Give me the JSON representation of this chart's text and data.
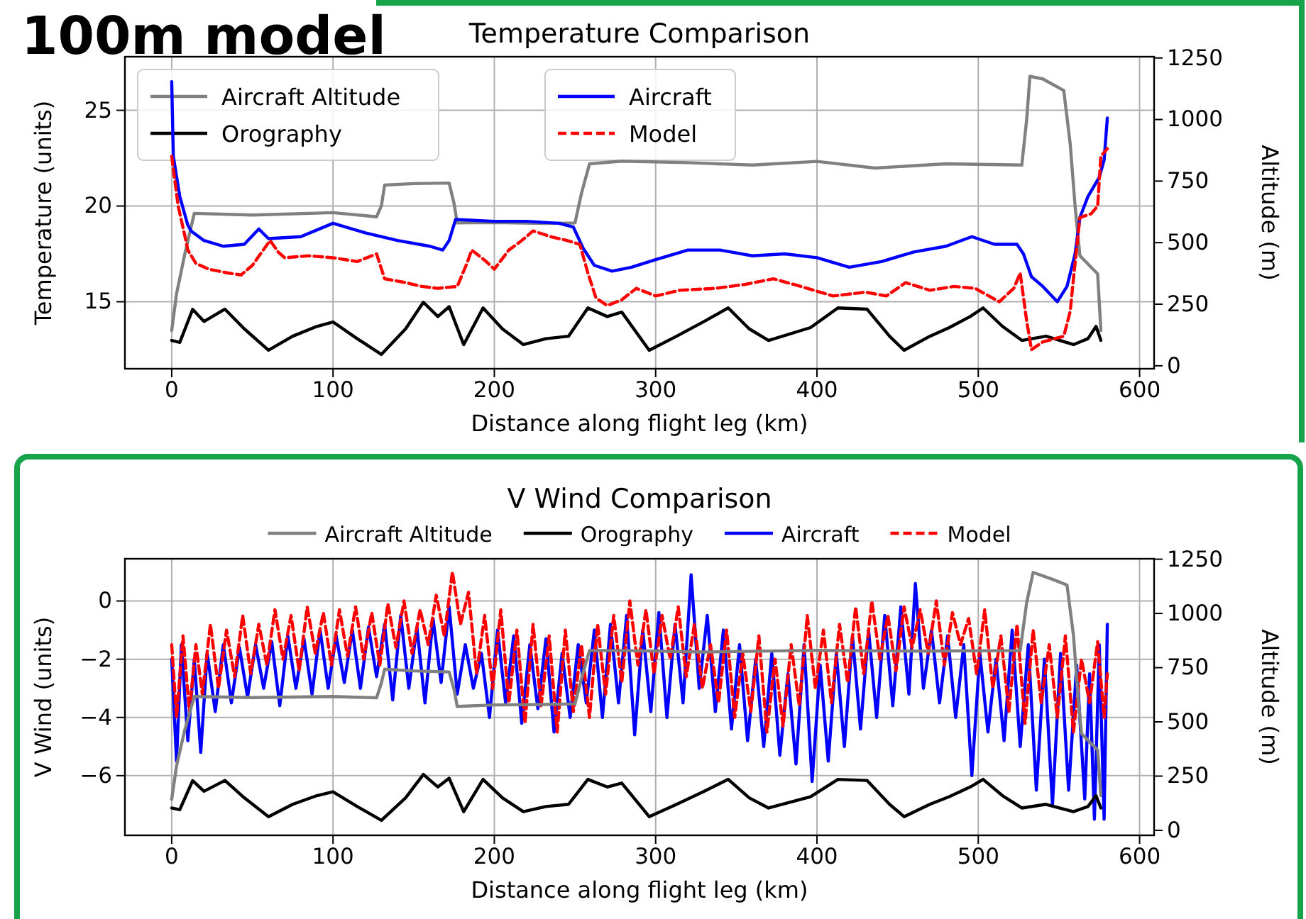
{
  "chart_data": [
    {
      "type": "line",
      "title": "Temperature Comparison",
      "xlabel": "Distance along flight leg (km)",
      "ylabel": "Temperature (units)",
      "y2label": "Altitude (m)",
      "annotations": [
        "100m model"
      ],
      "xlim": [
        -29,
        609
      ],
      "xticks": [
        0,
        100,
        200,
        300,
        400,
        500,
        600
      ],
      "ylim": [
        11.5,
        27.8
      ],
      "yticks": [
        15,
        20,
        25
      ],
      "y2lim": [
        -12,
        1255
      ],
      "y2ticks": [
        0,
        250,
        500,
        750,
        1000,
        1250
      ],
      "grid": true,
      "legend": "top",
      "marker": "none",
      "series": [
        {
          "name": "Aircraft Altitude",
          "color": "#808080",
          "axis": "y2",
          "line_style": "solid",
          "x": [
            0,
            3,
            8,
            14,
            50,
            100,
            127,
            130,
            132,
            150,
            172,
            175,
            177,
            200,
            230,
            250,
            254,
            259,
            279,
            320,
            360,
            400,
            436,
            480,
            527,
            530,
            532,
            540,
            553,
            557,
            560,
            563,
            570,
            574,
            576
          ],
          "values": [
            143,
            292,
            450,
            619,
            612,
            622,
            605,
            650,
            734,
            740,
            742,
            660,
            580,
            582,
            578,
            580,
            700,
            820,
            831,
            825,
            815,
            830,
            803,
            820,
            815,
            1000,
            1175,
            1165,
            1118,
            900,
            650,
            447,
            400,
            373,
            143
          ]
        },
        {
          "name": "Orography",
          "color": "#000000",
          "axis": "y2",
          "line_style": "solid",
          "x": [
            0,
            5,
            13,
            20,
            33,
            45,
            60,
            75,
            90,
            100,
            115,
            130,
            145,
            156,
            165,
            172,
            181,
            193,
            205,
            218,
            232,
            246,
            258,
            270,
            279,
            296,
            313,
            330,
            345,
            358,
            370,
            396,
            413,
            431,
            445,
            454,
            470,
            482,
            495,
            503,
            515,
            527,
            542,
            559,
            568,
            573,
            576
          ],
          "values": [
            103,
            95,
            229,
            180,
            230,
            150,
            63,
            120,
            160,
            178,
            110,
            46,
            150,
            258,
            200,
            240,
            86,
            235,
            150,
            86,
            110,
            120,
            235,
            200,
            218,
            63,
            120,
            180,
            235,
            150,
            103,
            155,
            235,
            230,
            120,
            63,
            120,
            155,
            200,
            235,
            160,
            103,
            120,
            86,
            110,
            160,
            103
          ]
        },
        {
          "name": "Aircraft",
          "color": "#0000ff",
          "line_style": "solid",
          "x": [
            0,
            1,
            5,
            10,
            12,
            20,
            32,
            45,
            54,
            60,
            80,
            100,
            120,
            140,
            160,
            168,
            172,
            176,
            200,
            220,
            240,
            249,
            255,
            262,
            273,
            285,
            300,
            320,
            340,
            360,
            380,
            400,
            420,
            440,
            460,
            480,
            496,
            510,
            524,
            528,
            533,
            540,
            549,
            555,
            560,
            563,
            568,
            575,
            578,
            580
          ],
          "values": [
            26.5,
            22.6,
            20.5,
            19.0,
            18.7,
            18.2,
            17.9,
            18.0,
            18.8,
            18.3,
            18.4,
            19.1,
            18.6,
            18.2,
            17.9,
            17.7,
            18.2,
            19.3,
            19.2,
            19.2,
            19.1,
            18.9,
            17.8,
            16.9,
            16.6,
            16.8,
            17.2,
            17.7,
            17.7,
            17.4,
            17.5,
            17.3,
            16.8,
            17.1,
            17.6,
            17.9,
            18.4,
            18.0,
            18.0,
            17.5,
            16.3,
            15.8,
            15.0,
            15.8,
            17.5,
            19.4,
            20.5,
            21.5,
            22.4,
            24.6
          ]
        },
        {
          "name": "Model",
          "color": "#ff0000",
          "line_style": "dashed",
          "x": [
            0,
            4,
            8,
            10,
            15,
            23,
            35,
            43,
            50,
            55,
            61,
            66,
            70,
            85,
            100,
            115,
            127,
            132,
            145,
            155,
            165,
            177,
            183,
            186,
            195,
            200,
            209,
            217,
            224,
            235,
            245,
            253,
            258,
            263,
            270,
            279,
            288,
            300,
            315,
            337,
            355,
            373,
            390,
            410,
            430,
            443,
            455,
            470,
            485,
            498,
            513,
            522,
            526,
            530,
            533,
            540,
            553,
            557,
            559,
            563,
            570,
            574,
            576,
            580
          ],
          "values": [
            22.6,
            20.0,
            18.5,
            17.7,
            17.0,
            16.7,
            16.5,
            16.4,
            16.9,
            17.5,
            18.2,
            17.6,
            17.3,
            17.4,
            17.3,
            17.1,
            17.5,
            16.2,
            16.0,
            15.8,
            15.7,
            15.8,
            17.0,
            17.7,
            17.1,
            16.7,
            17.7,
            18.2,
            18.7,
            18.4,
            18.2,
            18.0,
            16.5,
            15.2,
            14.8,
            15.1,
            15.7,
            15.3,
            15.6,
            15.7,
            15.9,
            16.2,
            15.8,
            15.3,
            15.5,
            15.3,
            16.0,
            15.6,
            15.8,
            15.7,
            15.0,
            15.7,
            16.5,
            14.0,
            12.5,
            12.9,
            13.2,
            14.5,
            16.2,
            19.4,
            19.6,
            20.0,
            22.6,
            23.0
          ]
        }
      ]
    },
    {
      "type": "line",
      "title": "V Wind Comparison",
      "xlabel": "Distance along flight leg (km)",
      "ylabel": "V Wind (units)",
      "y2label": "Altitude (m)",
      "xlim": [
        -29,
        609
      ],
      "xticks": [
        0,
        100,
        200,
        300,
        400,
        500,
        600
      ],
      "ylim": [
        -8.05,
        1.45
      ],
      "yticks": [
        {
          "value": -6,
          "label": "−6"
        },
        {
          "value": -4,
          "label": "−4"
        },
        {
          "value": -2,
          "label": "−2"
        },
        0
      ],
      "y2lim": [
        -23,
        1252
      ],
      "y2ticks": [
        0,
        250,
        500,
        750,
        1000,
        1250
      ],
      "grid": true,
      "legend": "top",
      "marker": "none",
      "series": [
        {
          "name": "Aircraft",
          "color": "#0000ff",
          "line_style": "solid",
          "x": [
            0,
            3,
            6,
            10,
            14,
            18,
            22,
            27,
            32,
            37,
            42,
            47,
            52,
            57,
            62,
            67,
            72,
            77,
            82,
            87,
            92,
            97,
            102,
            107,
            112,
            117,
            122,
            127,
            132,
            137,
            142,
            147,
            152,
            157,
            162,
            167,
            172,
            177,
            182,
            187,
            192,
            197,
            202,
            207,
            212,
            217,
            222,
            227,
            232,
            237,
            242,
            247,
            252,
            257,
            262,
            267,
            272,
            277,
            282,
            287,
            292,
            297,
            302,
            307,
            312,
            317,
            322,
            327,
            332,
            337,
            342,
            347,
            352,
            357,
            362,
            367,
            372,
            377,
            382,
            387,
            392,
            397,
            402,
            407,
            412,
            417,
            422,
            427,
            432,
            437,
            442,
            447,
            452,
            457,
            461,
            466,
            471,
            476,
            481,
            486,
            491,
            496,
            501,
            506,
            511,
            516,
            521,
            526,
            531,
            536,
            541,
            546,
            551,
            556,
            561,
            566,
            569,
            572,
            575,
            578,
            580
          ],
          "values": [
            -2.0,
            -5.5,
            -1.5,
            -4.8,
            -2.0,
            -5.2,
            -1.8,
            -3.8,
            -1.5,
            -3.5,
            -1.6,
            -3.3,
            -1.5,
            -3.0,
            -1.4,
            -3.6,
            -1.2,
            -3.0,
            -1.3,
            -3.2,
            -1.0,
            -3.0,
            -1.2,
            -2.8,
            -1.0,
            -3.0,
            -0.9,
            -2.6,
            -0.8,
            -3.4,
            -0.5,
            -3.0,
            -0.9,
            -3.5,
            -0.6,
            -2.8,
            -0.2,
            -3.2,
            -1.5,
            -3.0,
            -1.8,
            -4.0,
            -1.0,
            -3.5,
            -1.2,
            -4.2,
            -1.5,
            -3.7,
            -1.3,
            -4.5,
            -1.8,
            -4.0,
            -1.5,
            -3.5,
            -1.0,
            -4.0,
            -0.8,
            -3.5,
            -0.5,
            -4.6,
            -1.0,
            -3.8,
            -0.4,
            -4.0,
            -0.8,
            -3.5,
            0.9,
            -3.0,
            -0.5,
            -3.8,
            -1.0,
            -4.4,
            -1.5,
            -4.8,
            -2.0,
            -5.0,
            -1.8,
            -5.3,
            -2.5,
            -5.6,
            -1.5,
            -6.2,
            -2.2,
            -5.5,
            -1.8,
            -5.0,
            -1.2,
            -4.4,
            -1.0,
            -4.0,
            -0.5,
            -3.6,
            -0.2,
            -3.2,
            0.6,
            -3.0,
            -1.0,
            -3.5,
            -1.2,
            -4.0,
            -1.5,
            -6.0,
            -1.8,
            -4.5,
            -2.0,
            -4.8,
            -1.0,
            -5.0,
            -1.5,
            -6.5,
            -2.0,
            -7.0,
            -1.8,
            -6.5,
            -2.2,
            -6.8,
            -2.5,
            -7.5,
            -1.5,
            -7.5,
            -0.8
          ]
        },
        {
          "name": "Model",
          "color": "#ff0000",
          "line_style": "dashed",
          "x": [
            0,
            3,
            7,
            11,
            15,
            19,
            24,
            29,
            34,
            39,
            44,
            49,
            54,
            59,
            64,
            69,
            74,
            79,
            84,
            89,
            94,
            99,
            104,
            109,
            114,
            119,
            124,
            129,
            134,
            139,
            144,
            149,
            154,
            159,
            164,
            169,
            174,
            179,
            184,
            189,
            194,
            199,
            204,
            209,
            214,
            219,
            224,
            229,
            234,
            239,
            244,
            249,
            254,
            259,
            264,
            269,
            274,
            279,
            284,
            289,
            294,
            299,
            304,
            309,
            314,
            319,
            324,
            329,
            334,
            339,
            344,
            349,
            354,
            359,
            364,
            369,
            374,
            379,
            384,
            389,
            394,
            399,
            404,
            409,
            414,
            419,
            424,
            429,
            434,
            439,
            444,
            449,
            454,
            459,
            464,
            469,
            474,
            479,
            484,
            489,
            494,
            499,
            504,
            509,
            514,
            519,
            524,
            529,
            534,
            539,
            544,
            549,
            554,
            559,
            564,
            569,
            574,
            578,
            580
          ],
          "values": [
            -1.5,
            -4.0,
            -1.2,
            -3.8,
            -1.5,
            -3.2,
            -0.8,
            -3.0,
            -1.0,
            -2.6,
            -0.5,
            -2.5,
            -0.8,
            -2.2,
            -0.3,
            -2.0,
            -0.5,
            -2.4,
            -0.2,
            -1.8,
            -0.4,
            -2.2,
            -0.3,
            -1.9,
            -0.2,
            -2.0,
            -0.4,
            -2.2,
            -0.1,
            -1.6,
            0.0,
            -1.8,
            -0.3,
            -1.5,
            0.2,
            -1.2,
            1.0,
            -0.8,
            0.3,
            -2.5,
            -0.5,
            -3.0,
            -0.3,
            -3.5,
            -1.0,
            -4.2,
            -0.8,
            -3.6,
            -1.2,
            -4.5,
            -1.0,
            -3.8,
            -1.5,
            -4.0,
            -0.8,
            -3.2,
            -0.5,
            -2.8,
            0.0,
            -2.2,
            -0.3,
            -2.5,
            -0.5,
            -2.0,
            -0.2,
            -2.6,
            -0.8,
            -3.0,
            -1.5,
            -3.5,
            -1.0,
            -4.0,
            -1.8,
            -3.8,
            -1.2,
            -4.5,
            -2.0,
            -4.3,
            -1.5,
            -3.6,
            -0.5,
            -3.0,
            -1.0,
            -3.5,
            -0.8,
            -2.8,
            -0.2,
            -2.5,
            0.0,
            -2.0,
            -0.5,
            -2.4,
            -0.2,
            -1.6,
            -0.3,
            -1.8,
            0.0,
            -2.2,
            -0.4,
            -1.5,
            -0.6,
            -2.5,
            -0.3,
            -3.0,
            -1.2,
            -3.8,
            -0.8,
            -4.2,
            -1.0,
            -3.5,
            -1.5,
            -4.0,
            -1.2,
            -4.5,
            -2.0,
            -3.5,
            -1.4,
            -4.0,
            -2.5
          ]
        },
        {
          "name": "Aircraft Altitude",
          "color": "#808080",
          "axis": "y2",
          "line_style": "solid",
          "x": [
            0,
            3,
            8,
            14,
            50,
            100,
            127,
            130,
            132,
            150,
            172,
            175,
            177,
            200,
            230,
            250,
            254,
            259,
            280,
            330,
            400,
            460,
            526,
            530,
            534,
            545,
            555,
            559,
            562,
            564,
            570,
            574,
            576
          ],
          "values": [
            143,
            297,
            460,
            617,
            612,
            617,
            611,
            680,
            743,
            735,
            730,
            650,
            571,
            578,
            580,
            583,
            700,
            829,
            829,
            822,
            830,
            826,
            829,
            1050,
            1189,
            1160,
            1131,
            900,
            600,
            446,
            400,
            371,
            160
          ]
        },
        {
          "name": "Orography",
          "color": "#000000",
          "axis": "y2",
          "line_style": "solid",
          "x": [
            0,
            5,
            13,
            20,
            33,
            45,
            60,
            75,
            90,
            100,
            115,
            130,
            145,
            156,
            165,
            172,
            181,
            193,
            205,
            218,
            232,
            246,
            258,
            270,
            279,
            296,
            313,
            330,
            345,
            358,
            370,
            396,
            413,
            431,
            445,
            454,
            470,
            482,
            495,
            503,
            515,
            527,
            542,
            559,
            568,
            573,
            576
          ],
          "values": [
            103,
            95,
            229,
            180,
            230,
            150,
            63,
            120,
            160,
            178,
            110,
            46,
            150,
            258,
            200,
            240,
            86,
            235,
            150,
            86,
            110,
            120,
            235,
            200,
            218,
            63,
            120,
            180,
            235,
            150,
            103,
            155,
            235,
            230,
            120,
            63,
            120,
            155,
            200,
            235,
            160,
            103,
            120,
            86,
            110,
            160,
            103
          ]
        }
      ]
    }
  ]
}
